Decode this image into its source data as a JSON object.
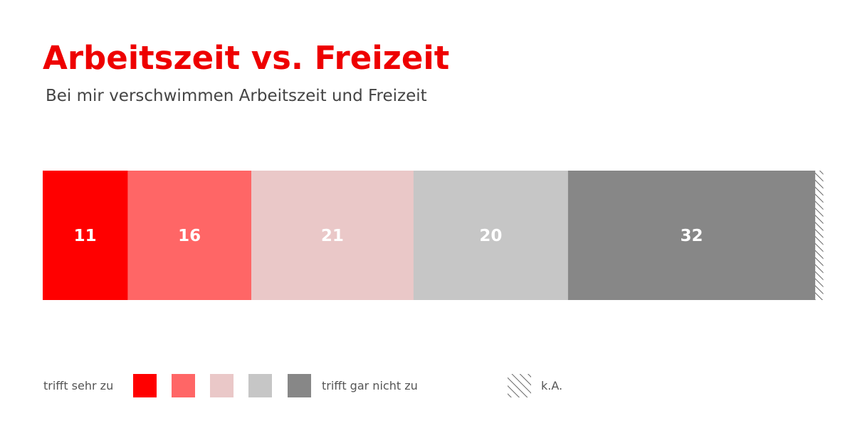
{
  "chart_data": {
    "type": "bar",
    "orientation": "horizontal-stacked-100",
    "title": "Arbeitszeit vs. Freizeit",
    "subtitle": "Bei mir verschwimmen Arbeitszeit und Freizeit",
    "categories": [
      ""
    ],
    "series": [
      {
        "value": 11,
        "label": "11",
        "color": "#ff0000"
      },
      {
        "value": 16,
        "label": "16",
        "color": "#ff6666"
      },
      {
        "value": 21,
        "label": "21",
        "color": "#eac8c8"
      },
      {
        "value": 20,
        "label": "20",
        "color": "#c6c6c6"
      },
      {
        "value": 32,
        "label": "32",
        "color": "#878787"
      },
      {
        "value": 1,
        "label": "",
        "pattern": "hatch",
        "color": "#666666"
      }
    ],
    "legend": {
      "placement": "bottom",
      "left_label": "trifft sehr zu",
      "right_label": "trifft gar nicht zu",
      "na_label": "k.A.",
      "swatch_colors": [
        "#ff0000",
        "#ff6666",
        "#eac8c8",
        "#c6c6c6",
        "#878787"
      ]
    }
  }
}
